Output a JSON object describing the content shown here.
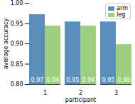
{
  "chart_data": {
    "type": "bar",
    "categories": [
      "1",
      "2",
      "3"
    ],
    "series": [
      {
        "name": "arm",
        "color": "#5a8fbd",
        "values": [
          0.972,
          0.954,
          0.954
        ],
        "value_labels": [
          "0.97",
          "0.95",
          "0.95"
        ]
      },
      {
        "name": "leg",
        "color": "#9ccf7e",
        "values": [
          0.944,
          0.944,
          0.898
        ],
        "value_labels": [
          "0.94",
          "0.94",
          "0.90"
        ]
      }
    ],
    "x_label": "participant",
    "y_label": "average accuracy",
    "ylim": [
      0.8,
      1.0
    ],
    "yticks": [
      {
        "value": 0.8,
        "label": "0.80"
      },
      {
        "value": 0.85,
        "label": "0.85"
      },
      {
        "value": 0.9,
        "label": "0.90"
      },
      {
        "value": 0.95,
        "label": "0.95"
      },
      {
        "value": 1.0,
        "label": "1.00"
      }
    ],
    "grid": false,
    "legend": "upper right",
    "data_labels": true
  }
}
